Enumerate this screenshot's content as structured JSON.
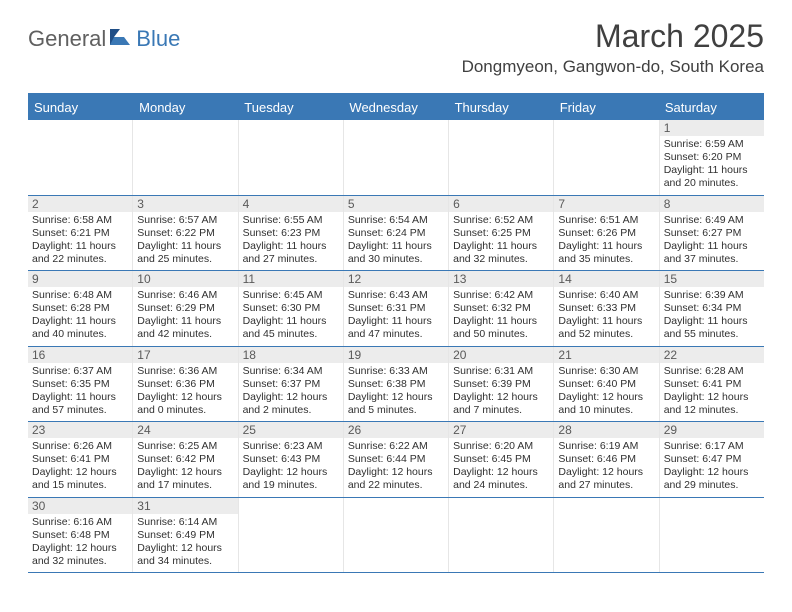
{
  "brand": {
    "part1": "General",
    "part2": "Blue"
  },
  "title": "March 2025",
  "location": "Dongmyeon, Gangwon-do, South Korea",
  "colors": {
    "accent": "#3a78b5",
    "daynum_bg": "#ececec",
    "text": "#303030",
    "title_text": "#404040",
    "logo_gray": "#606060"
  },
  "dayheads": [
    "Sunday",
    "Monday",
    "Tuesday",
    "Wednesday",
    "Thursday",
    "Friday",
    "Saturday"
  ],
  "weeks": [
    [
      null,
      null,
      null,
      null,
      null,
      null,
      {
        "n": "1",
        "sr": "Sunrise: 6:59 AM",
        "ss": "Sunset: 6:20 PM",
        "dl1": "Daylight: 11 hours",
        "dl2": "and 20 minutes."
      }
    ],
    [
      {
        "n": "2",
        "sr": "Sunrise: 6:58 AM",
        "ss": "Sunset: 6:21 PM",
        "dl1": "Daylight: 11 hours",
        "dl2": "and 22 minutes."
      },
      {
        "n": "3",
        "sr": "Sunrise: 6:57 AM",
        "ss": "Sunset: 6:22 PM",
        "dl1": "Daylight: 11 hours",
        "dl2": "and 25 minutes."
      },
      {
        "n": "4",
        "sr": "Sunrise: 6:55 AM",
        "ss": "Sunset: 6:23 PM",
        "dl1": "Daylight: 11 hours",
        "dl2": "and 27 minutes."
      },
      {
        "n": "5",
        "sr": "Sunrise: 6:54 AM",
        "ss": "Sunset: 6:24 PM",
        "dl1": "Daylight: 11 hours",
        "dl2": "and 30 minutes."
      },
      {
        "n": "6",
        "sr": "Sunrise: 6:52 AM",
        "ss": "Sunset: 6:25 PM",
        "dl1": "Daylight: 11 hours",
        "dl2": "and 32 minutes."
      },
      {
        "n": "7",
        "sr": "Sunrise: 6:51 AM",
        "ss": "Sunset: 6:26 PM",
        "dl1": "Daylight: 11 hours",
        "dl2": "and 35 minutes."
      },
      {
        "n": "8",
        "sr": "Sunrise: 6:49 AM",
        "ss": "Sunset: 6:27 PM",
        "dl1": "Daylight: 11 hours",
        "dl2": "and 37 minutes."
      }
    ],
    [
      {
        "n": "9",
        "sr": "Sunrise: 6:48 AM",
        "ss": "Sunset: 6:28 PM",
        "dl1": "Daylight: 11 hours",
        "dl2": "and 40 minutes."
      },
      {
        "n": "10",
        "sr": "Sunrise: 6:46 AM",
        "ss": "Sunset: 6:29 PM",
        "dl1": "Daylight: 11 hours",
        "dl2": "and 42 minutes."
      },
      {
        "n": "11",
        "sr": "Sunrise: 6:45 AM",
        "ss": "Sunset: 6:30 PM",
        "dl1": "Daylight: 11 hours",
        "dl2": "and 45 minutes."
      },
      {
        "n": "12",
        "sr": "Sunrise: 6:43 AM",
        "ss": "Sunset: 6:31 PM",
        "dl1": "Daylight: 11 hours",
        "dl2": "and 47 minutes."
      },
      {
        "n": "13",
        "sr": "Sunrise: 6:42 AM",
        "ss": "Sunset: 6:32 PM",
        "dl1": "Daylight: 11 hours",
        "dl2": "and 50 minutes."
      },
      {
        "n": "14",
        "sr": "Sunrise: 6:40 AM",
        "ss": "Sunset: 6:33 PM",
        "dl1": "Daylight: 11 hours",
        "dl2": "and 52 minutes."
      },
      {
        "n": "15",
        "sr": "Sunrise: 6:39 AM",
        "ss": "Sunset: 6:34 PM",
        "dl1": "Daylight: 11 hours",
        "dl2": "and 55 minutes."
      }
    ],
    [
      {
        "n": "16",
        "sr": "Sunrise: 6:37 AM",
        "ss": "Sunset: 6:35 PM",
        "dl1": "Daylight: 11 hours",
        "dl2": "and 57 minutes."
      },
      {
        "n": "17",
        "sr": "Sunrise: 6:36 AM",
        "ss": "Sunset: 6:36 PM",
        "dl1": "Daylight: 12 hours",
        "dl2": "and 0 minutes."
      },
      {
        "n": "18",
        "sr": "Sunrise: 6:34 AM",
        "ss": "Sunset: 6:37 PM",
        "dl1": "Daylight: 12 hours",
        "dl2": "and 2 minutes."
      },
      {
        "n": "19",
        "sr": "Sunrise: 6:33 AM",
        "ss": "Sunset: 6:38 PM",
        "dl1": "Daylight: 12 hours",
        "dl2": "and 5 minutes."
      },
      {
        "n": "20",
        "sr": "Sunrise: 6:31 AM",
        "ss": "Sunset: 6:39 PM",
        "dl1": "Daylight: 12 hours",
        "dl2": "and 7 minutes."
      },
      {
        "n": "21",
        "sr": "Sunrise: 6:30 AM",
        "ss": "Sunset: 6:40 PM",
        "dl1": "Daylight: 12 hours",
        "dl2": "and 10 minutes."
      },
      {
        "n": "22",
        "sr": "Sunrise: 6:28 AM",
        "ss": "Sunset: 6:41 PM",
        "dl1": "Daylight: 12 hours",
        "dl2": "and 12 minutes."
      }
    ],
    [
      {
        "n": "23",
        "sr": "Sunrise: 6:26 AM",
        "ss": "Sunset: 6:41 PM",
        "dl1": "Daylight: 12 hours",
        "dl2": "and 15 minutes."
      },
      {
        "n": "24",
        "sr": "Sunrise: 6:25 AM",
        "ss": "Sunset: 6:42 PM",
        "dl1": "Daylight: 12 hours",
        "dl2": "and 17 minutes."
      },
      {
        "n": "25",
        "sr": "Sunrise: 6:23 AM",
        "ss": "Sunset: 6:43 PM",
        "dl1": "Daylight: 12 hours",
        "dl2": "and 19 minutes."
      },
      {
        "n": "26",
        "sr": "Sunrise: 6:22 AM",
        "ss": "Sunset: 6:44 PM",
        "dl1": "Daylight: 12 hours",
        "dl2": "and 22 minutes."
      },
      {
        "n": "27",
        "sr": "Sunrise: 6:20 AM",
        "ss": "Sunset: 6:45 PM",
        "dl1": "Daylight: 12 hours",
        "dl2": "and 24 minutes."
      },
      {
        "n": "28",
        "sr": "Sunrise: 6:19 AM",
        "ss": "Sunset: 6:46 PM",
        "dl1": "Daylight: 12 hours",
        "dl2": "and 27 minutes."
      },
      {
        "n": "29",
        "sr": "Sunrise: 6:17 AM",
        "ss": "Sunset: 6:47 PM",
        "dl1": "Daylight: 12 hours",
        "dl2": "and 29 minutes."
      }
    ],
    [
      {
        "n": "30",
        "sr": "Sunrise: 6:16 AM",
        "ss": "Sunset: 6:48 PM",
        "dl1": "Daylight: 12 hours",
        "dl2": "and 32 minutes."
      },
      {
        "n": "31",
        "sr": "Sunrise: 6:14 AM",
        "ss": "Sunset: 6:49 PM",
        "dl1": "Daylight: 12 hours",
        "dl2": "and 34 minutes."
      },
      null,
      null,
      null,
      null,
      null
    ]
  ]
}
